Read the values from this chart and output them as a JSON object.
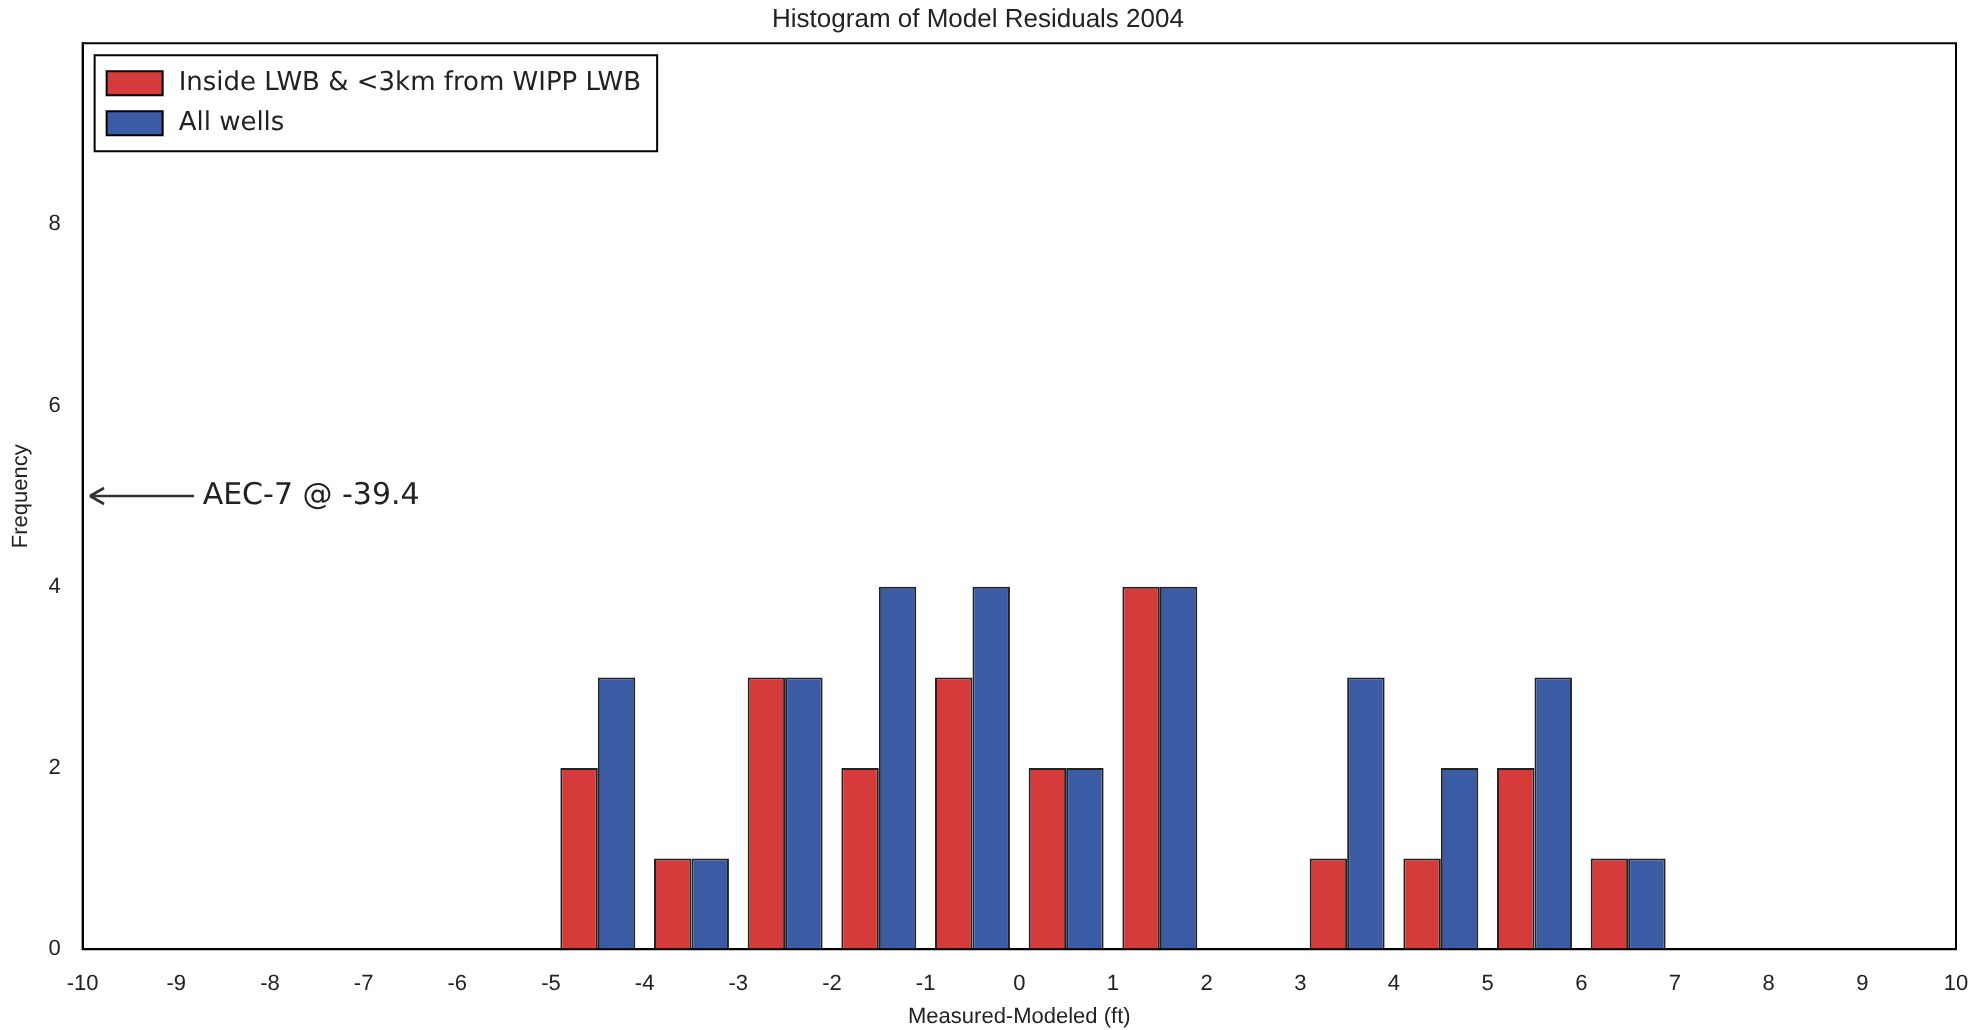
{
  "chart_data": {
    "type": "histogram",
    "title": "Histogram of Model Residuals 2004",
    "xlabel": "Measured-Modeled (ft)",
    "ylabel": "Frequency",
    "bins": [
      -5,
      -4,
      -3,
      -2,
      -1,
      0,
      1,
      2,
      3,
      4,
      5,
      6,
      7
    ],
    "series": [
      {
        "name": "Inside LWB & <3km from WIPP LWB",
        "color": "#d63b3b",
        "values": [
          2,
          1,
          3,
          2,
          3,
          2,
          4,
          0,
          1,
          1,
          2,
          1
        ]
      },
      {
        "name": "All wells",
        "color": "#3b5ba5",
        "values": [
          3,
          1,
          3,
          4,
          4,
          2,
          4,
          0,
          3,
          2,
          3,
          1
        ]
      }
    ],
    "xlim": [
      -10,
      10
    ],
    "xticks": [
      -10,
      -9,
      -8,
      -7,
      -6,
      -5,
      -4,
      -3,
      -2,
      -1,
      0,
      1,
      2,
      3,
      4,
      5,
      6,
      7,
      8,
      9,
      10
    ],
    "ylim": [
      0,
      10
    ],
    "yticks": [
      0,
      2,
      4,
      6,
      8
    ],
    "grid": false,
    "legend": "top left",
    "annotations": [
      "AEC-7 @ -39.4"
    ]
  }
}
